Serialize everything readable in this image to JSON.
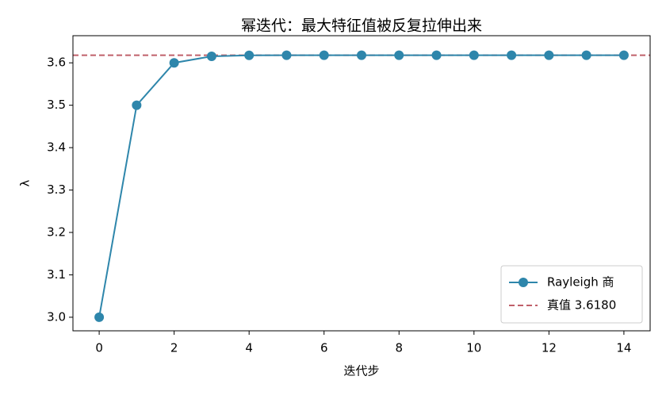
{
  "chart_data": {
    "type": "line",
    "title": "幂迭代：最大特征值被反复拉伸出来",
    "x_label": "迭代步",
    "y_label": "λ",
    "x": [
      0,
      1,
      2,
      3,
      4,
      5,
      6,
      7,
      8,
      9,
      10,
      11,
      12,
      13,
      14
    ],
    "series": [
      {
        "name": "Rayleigh 商",
        "color": "#2e86ab",
        "values": [
          3.0,
          3.5,
          3.6,
          3.6154,
          3.6176,
          3.618,
          3.618,
          3.618,
          3.618,
          3.618,
          3.618,
          3.618,
          3.618,
          3.618,
          3.618
        ]
      }
    ],
    "reference_line": {
      "name": "真值 3.6180",
      "value": 3.618,
      "color": "#c0606a",
      "style": "dashed"
    },
    "xlim": [
      -0.7,
      14.7
    ],
    "xticks": [
      0,
      2,
      4,
      6,
      8,
      10,
      12,
      14
    ],
    "ylim": [
      2.968,
      3.664
    ],
    "yticks": [
      {
        "value": 3.0,
        "label": "3.0"
      },
      {
        "value": 3.1,
        "label": "3.1"
      },
      {
        "value": 3.2,
        "label": "3.2"
      },
      {
        "value": 3.3,
        "label": "3.3"
      },
      {
        "value": 3.4,
        "label": "3.4"
      },
      {
        "value": 3.5,
        "label": "3.5"
      },
      {
        "value": 3.6,
        "label": "3.6"
      }
    ],
    "legend": "lower right",
    "grid": false
  }
}
